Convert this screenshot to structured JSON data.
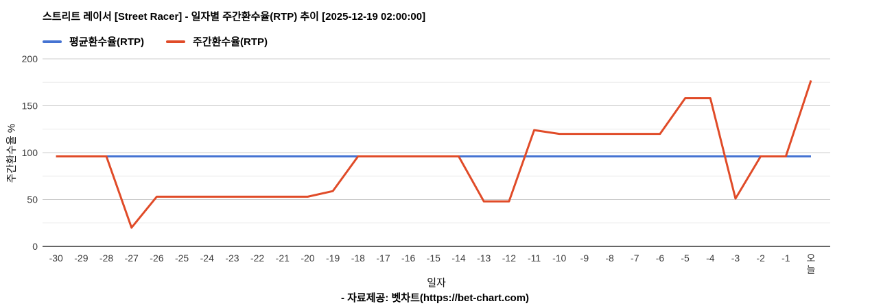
{
  "page": {
    "title": "스트리트 레이서 [Street Racer] - 일자별 주간환수율(RTP) 추이 [2025-12-19 02:00:00]",
    "footer": "- 자료제공: 벳차트(https://bet-chart.com)"
  },
  "chart_data": {
    "type": "line",
    "title": "스트리트 레이서 [Street Racer] - 일자별 주간환수율(RTP) 추이 [2025-12-19 02:00:00]",
    "xlabel": "일자",
    "ylabel": "주간환수율 %",
    "ylim": [
      0,
      200
    ],
    "yticks": [
      0,
      50,
      100,
      150,
      200
    ],
    "minor_gridlines": [
      25,
      75,
      125,
      175
    ],
    "grid": true,
    "legend_position": "top-left",
    "categories": [
      "-30",
      "-29",
      "-28",
      "-27",
      "-26",
      "-25",
      "-24",
      "-23",
      "-22",
      "-21",
      "-20",
      "-19",
      "-18",
      "-17",
      "-16",
      "-15",
      "-14",
      "-13",
      "-12",
      "-11",
      "-10",
      "-9",
      "-8",
      "-7",
      "-6",
      "-5",
      "-4",
      "-3",
      "-2",
      "-1",
      "오늘"
    ],
    "series": [
      {
        "key": "average-rtp",
        "name": "평균환수율(RTP)",
        "color": "#4573d2",
        "values": [
          96,
          96,
          96,
          96,
          96,
          96,
          96,
          96,
          96,
          96,
          96,
          96,
          96,
          96,
          96,
          96,
          96,
          96,
          96,
          96,
          96,
          96,
          96,
          96,
          96,
          96,
          96,
          96,
          96,
          96,
          96
        ]
      },
      {
        "key": "weekly-rtp",
        "name": "주간환수율(RTP)",
        "color": "#e04b28",
        "values": [
          96,
          96,
          96,
          20,
          53,
          53,
          53,
          53,
          53,
          53,
          53,
          59,
          96,
          96,
          96,
          96,
          96,
          48,
          48,
          124,
          120,
          120,
          120,
          120,
          120,
          158,
          158,
          51,
          96,
          96,
          177
        ]
      }
    ],
    "colors": {
      "major_grid": "#cccccc",
      "minor_grid": "#ebebeb",
      "axis": "#333333",
      "tick_label": "#3c3c3c"
    }
  }
}
